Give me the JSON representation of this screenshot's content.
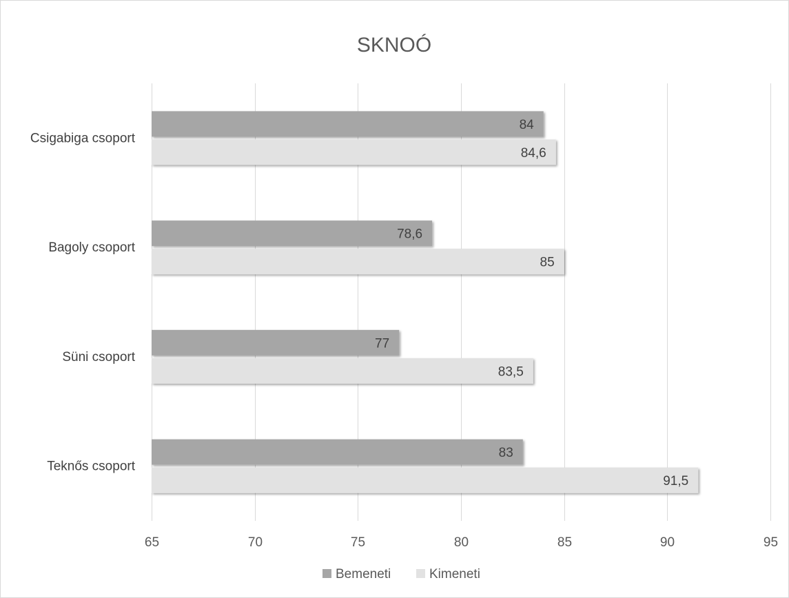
{
  "chart_data": {
    "type": "bar",
    "orientation": "horizontal",
    "title": "SKNOÓ",
    "categories": [
      "Csigabiga csoport",
      "Bagoly csoport",
      "Süni csoport",
      "Teknős csoport"
    ],
    "series": [
      {
        "name": "Bemeneti",
        "values": [
          84,
          78.6,
          77,
          83
        ],
        "labels": [
          "84",
          "78,6",
          "77",
          "83"
        ],
        "color": "#a6a6a6"
      },
      {
        "name": "Kimeneti",
        "values": [
          84.6,
          85,
          83.5,
          91.5
        ],
        "labels": [
          "84,6",
          "85",
          "83,5",
          "91,5"
        ],
        "color": "#e2e2e2"
      }
    ],
    "x_ticks": [
      "65",
      "70",
      "75",
      "80",
      "85",
      "90",
      "95"
    ],
    "xlim": [
      65,
      95
    ],
    "grid": true,
    "legend_position": "bottom"
  }
}
